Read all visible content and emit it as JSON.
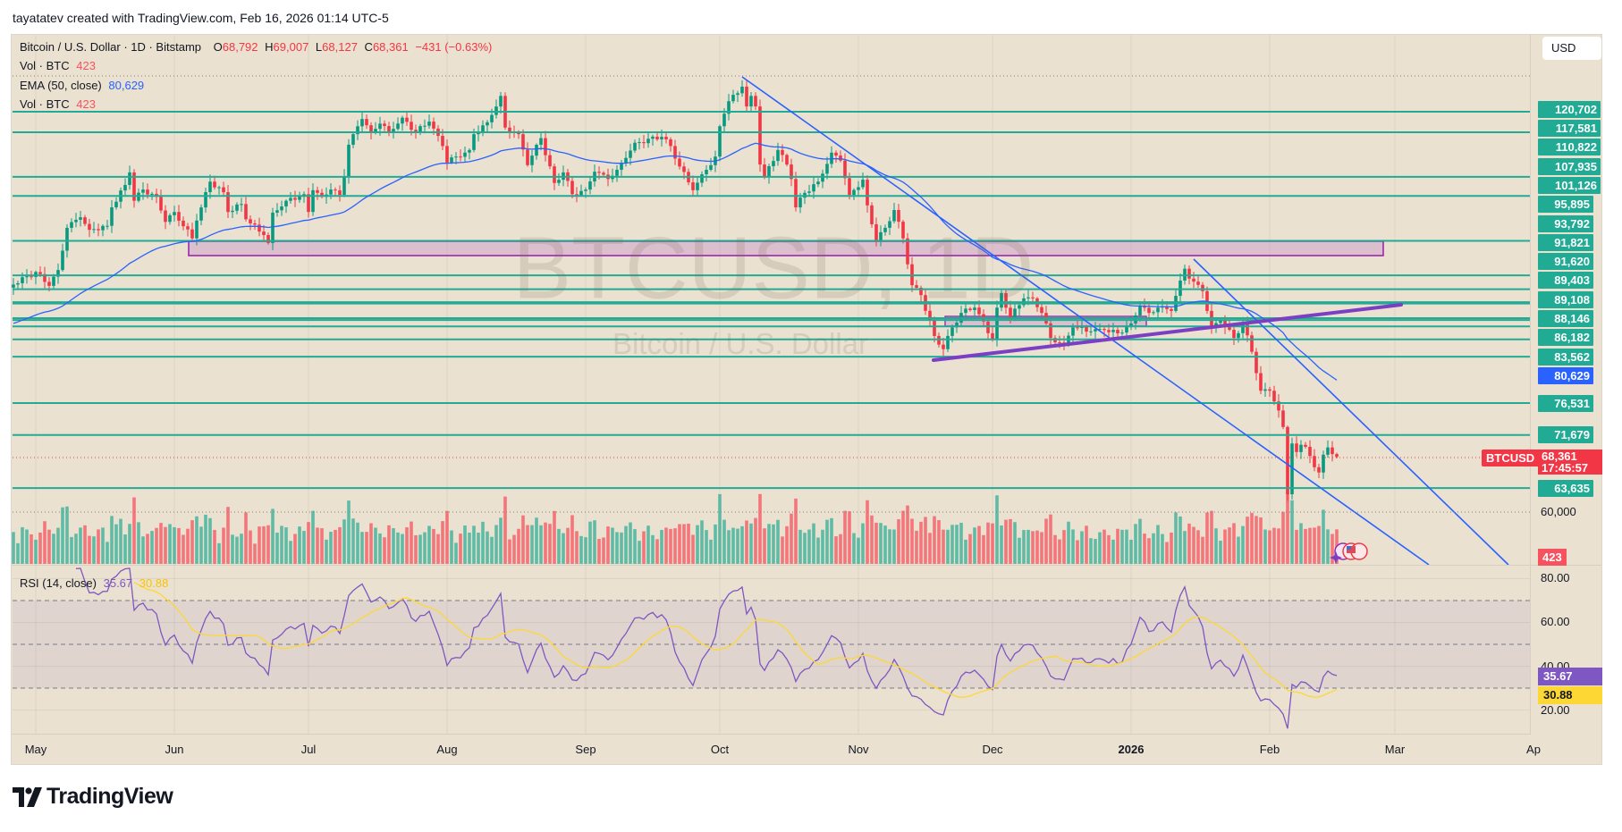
{
  "header": {
    "attribution": "tayatatev created with TradingView.com, Feb 16, 2026 01:14 UTC-5"
  },
  "legend": {
    "symbol": "Bitcoin / U.S. Dollar · 1D · Bitstamp",
    "o_label": "O",
    "open": "68,792",
    "h_label": "H",
    "high": "69,007",
    "l_label": "L",
    "low": "68,127",
    "c_label": "C",
    "close": "68,361",
    "change": "−431 (−0.63%)",
    "vol_label": "Vol · BTC",
    "vol_value": "423",
    "ema_label": "EMA (50, close)",
    "ema_value": "80,629",
    "vol2_label": "Vol · BTC",
    "vol2_value": "423"
  },
  "watermark": {
    "title": "BTCUSD, 1D",
    "subtitle": "Bitcoin / U.S. Dollar"
  },
  "currency_button": "USD",
  "price_axis": {
    "scale_label": "60,000",
    "ema_label": "80,629",
    "ema_price": 80629,
    "current": {
      "symbol": "BTCUSD",
      "price": "68,361",
      "countdown": "17:45:57"
    },
    "volume_label": "423"
  },
  "rsi": {
    "legend_label": "RSI (14, close)",
    "value": "35.67",
    "ma_value": "30.88",
    "axis": [
      "80.00",
      "60.00",
      "40.00",
      "20.00"
    ],
    "upper_band": 70,
    "middle_band": 50,
    "lower_band": 30
  },
  "time_axis": [
    {
      "label": "May",
      "date": "2025-05-01"
    },
    {
      "label": "Jun",
      "date": "2025-06-01"
    },
    {
      "label": "Jul",
      "date": "2025-07-01"
    },
    {
      "label": "Aug",
      "date": "2025-08-01"
    },
    {
      "label": "Sep",
      "date": "2025-09-01"
    },
    {
      "label": "Oct",
      "date": "2025-10-01"
    },
    {
      "label": "Nov",
      "date": "2025-11-01"
    },
    {
      "label": "Dec",
      "date": "2025-12-01"
    },
    {
      "label": "2026",
      "date": "2026-01-01",
      "bold": true
    },
    {
      "label": "Feb",
      "date": "2026-02-01"
    },
    {
      "label": "Mar",
      "date": "2026-03-01"
    },
    {
      "label": "Ap",
      "date": "2026-04-01"
    }
  ],
  "brand": "TradingView",
  "colors": {
    "background": "#ebe1d0",
    "up": "#089981",
    "down": "#f23645",
    "level_line": "#22ab94",
    "ema": "#2962ff",
    "trendline": "#2962ff",
    "support_line": "#7b3fc4",
    "zone": "#9c27b0",
    "rsi": "#7e57c2",
    "rsi_ma": "#fdd835"
  },
  "chart_data": {
    "type": "candlestick",
    "title": "Bitcoin / U.S. Dollar · 1D · Bitstamp",
    "ylim": [
      52100,
      132500
    ],
    "last_ohlc": {
      "date": "2026-02-16",
      "open": 68792,
      "high": 69007,
      "low": 68127,
      "close": 68361
    },
    "horizontal_levels": [
      120702,
      117581,
      110822,
      107935,
      101126,
      95895,
      93792,
      91821,
      91620,
      89403,
      89108,
      88146,
      86182,
      83562,
      76531,
      71679,
      63635
    ],
    "indicators": [
      "EMA (50, close)",
      "Vol · BTC",
      "RSI (14, close)"
    ],
    "closes": [
      [
        "2025-04-26",
        94500
      ],
      [
        "2025-05-01",
        96400
      ],
      [
        "2025-05-04",
        94300
      ],
      [
        "2025-05-06",
        96700
      ],
      [
        "2025-05-08",
        103100
      ],
      [
        "2025-05-11",
        104700
      ],
      [
        "2025-05-13",
        102800
      ],
      [
        "2025-05-17",
        103400
      ],
      [
        "2025-05-18",
        106200
      ],
      [
        "2025-05-21",
        109600
      ],
      [
        "2025-05-22",
        111500
      ],
      [
        "2025-05-23",
        107200
      ],
      [
        "2025-05-25",
        108900
      ],
      [
        "2025-05-28",
        107800
      ],
      [
        "2025-05-30",
        104000
      ],
      [
        "2025-06-01",
        105500
      ],
      [
        "2025-06-05",
        101500
      ],
      [
        "2025-06-06",
        104200
      ],
      [
        "2025-06-09",
        110100
      ],
      [
        "2025-06-12",
        108500
      ],
      [
        "2025-06-13",
        105500
      ],
      [
        "2025-06-16",
        106700
      ],
      [
        "2025-06-17",
        104400
      ],
      [
        "2025-06-21",
        102000
      ],
      [
        "2025-06-22",
        100800
      ],
      [
        "2025-06-23",
        105400
      ],
      [
        "2025-06-26",
        107200
      ],
      [
        "2025-06-30",
        108200
      ],
      [
        "2025-07-01",
        105500
      ],
      [
        "2025-07-02",
        108800
      ],
      [
        "2025-07-04",
        107800
      ],
      [
        "2025-07-06",
        108900
      ],
      [
        "2025-07-08",
        108100
      ],
      [
        "2025-07-09",
        110900
      ],
      [
        "2025-07-10",
        115700
      ],
      [
        "2025-07-11",
        117300
      ],
      [
        "2025-07-13",
        119600
      ],
      [
        "2025-07-15",
        117600
      ],
      [
        "2025-07-17",
        118900
      ],
      [
        "2025-07-19",
        117700
      ],
      [
        "2025-07-22",
        119800
      ],
      [
        "2025-07-25",
        117600
      ],
      [
        "2025-07-28",
        119200
      ],
      [
        "2025-07-31",
        115500
      ],
      [
        "2025-08-01",
        113000
      ],
      [
        "2025-08-03",
        113900
      ],
      [
        "2025-08-06",
        114900
      ],
      [
        "2025-08-07",
        117300
      ],
      [
        "2025-08-10",
        119100
      ],
      [
        "2025-08-13",
        123100
      ],
      [
        "2025-08-14",
        118300
      ],
      [
        "2025-08-17",
        117300
      ],
      [
        "2025-08-19",
        112600
      ],
      [
        "2025-08-22",
        116700
      ],
      [
        "2025-08-25",
        109900
      ],
      [
        "2025-08-27",
        111500
      ],
      [
        "2025-08-29",
        108200
      ],
      [
        "2025-09-01",
        108900
      ],
      [
        "2025-09-03",
        111600
      ],
      [
        "2025-09-06",
        110500
      ],
      [
        "2025-09-08",
        111900
      ],
      [
        "2025-09-10",
        113700
      ],
      [
        "2025-09-12",
        116000
      ],
      [
        "2025-09-18",
        116900
      ],
      [
        "2025-09-20",
        115500
      ],
      [
        "2025-09-22",
        112400
      ],
      [
        "2025-09-25",
        108800
      ],
      [
        "2025-09-28",
        111900
      ],
      [
        "2025-09-30",
        113900
      ],
      [
        "2025-10-01",
        118500
      ],
      [
        "2025-10-02",
        120400
      ],
      [
        "2025-10-03",
        122300
      ],
      [
        "2025-10-05",
        123500
      ],
      [
        "2025-10-06",
        124500
      ],
      [
        "2025-10-07",
        121500
      ],
      [
        "2025-10-08",
        123100
      ],
      [
        "2025-10-09",
        121500
      ],
      [
        "2025-10-10",
        112700
      ],
      [
        "2025-10-11",
        110800
      ],
      [
        "2025-10-14",
        114900
      ],
      [
        "2025-10-16",
        112700
      ],
      [
        "2025-10-17",
        110500
      ],
      [
        "2025-10-18",
        106200
      ],
      [
        "2025-10-20",
        108400
      ],
      [
        "2025-10-23",
        110100
      ],
      [
        "2025-10-26",
        114500
      ],
      [
        "2025-10-28",
        113300
      ],
      [
        "2025-10-30",
        108100
      ],
      [
        "2025-11-02",
        110400
      ],
      [
        "2025-11-03",
        106500
      ],
      [
        "2025-11-05",
        101200
      ],
      [
        "2025-11-07",
        103100
      ],
      [
        "2025-11-09",
        105800
      ],
      [
        "2025-11-11",
        101500
      ],
      [
        "2025-11-13",
        94400
      ],
      [
        "2025-11-15",
        92900
      ],
      [
        "2025-11-18",
        86700
      ],
      [
        "2025-11-20",
        84700
      ],
      [
        "2025-11-22",
        88000
      ],
      [
        "2025-11-24",
        90200
      ],
      [
        "2025-11-27",
        91000
      ],
      [
        "2025-12-01",
        86200
      ],
      [
        "2025-12-02",
        91000
      ],
      [
        "2025-12-03",
        93200
      ],
      [
        "2025-12-05",
        89500
      ],
      [
        "2025-12-08",
        92400
      ],
      [
        "2025-12-10",
        92400
      ],
      [
        "2025-12-12",
        90200
      ],
      [
        "2025-12-14",
        86400
      ],
      [
        "2025-12-17",
        85500
      ],
      [
        "2025-12-19",
        88000
      ],
      [
        "2025-12-23",
        87400
      ],
      [
        "2025-12-26",
        87600
      ],
      [
        "2025-12-29",
        87100
      ],
      [
        "2026-01-01",
        88600
      ],
      [
        "2026-01-03",
        91300
      ],
      [
        "2026-01-05",
        90200
      ],
      [
        "2026-01-07",
        91000
      ],
      [
        "2026-01-10",
        90500
      ],
      [
        "2026-01-12",
        95100
      ],
      [
        "2026-01-13",
        96900
      ],
      [
        "2026-01-14",
        95400
      ],
      [
        "2026-01-17",
        93500
      ],
      [
        "2026-01-19",
        88000
      ],
      [
        "2026-01-21",
        89000
      ],
      [
        "2026-01-24",
        86400
      ],
      [
        "2026-01-26",
        88600
      ],
      [
        "2026-01-28",
        84300
      ],
      [
        "2026-01-30",
        78400
      ],
      [
        "2026-02-01",
        78400
      ],
      [
        "2026-02-03",
        75400
      ],
      [
        "2026-02-04",
        72900
      ],
      [
        "2026-02-05",
        62700
      ],
      [
        "2026-02-06",
        70400
      ],
      [
        "2026-02-07",
        69100
      ],
      [
        "2026-02-08",
        70200
      ],
      [
        "2026-02-09",
        69900
      ],
      [
        "2026-02-10",
        68500
      ],
      [
        "2026-02-11",
        66800
      ],
      [
        "2026-02-12",
        66000
      ],
      [
        "2026-02-13",
        68700
      ],
      [
        "2026-02-14",
        69800
      ],
      [
        "2026-02-15",
        68792
      ],
      [
        "2026-02-16",
        68361
      ]
    ]
  }
}
